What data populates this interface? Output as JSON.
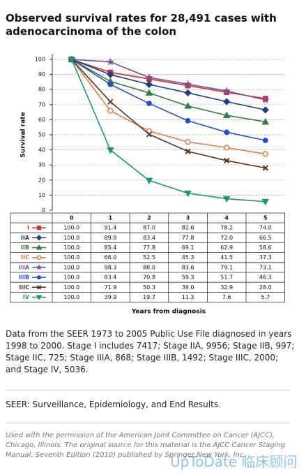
{
  "chart_data": {
    "type": "line",
    "title": "Observed survival rates for 28,491 cases with adenocarcinoma of the colon",
    "ylabel": "Survival rate",
    "xlabel": "Years from diagnosis",
    "x": [
      0,
      1,
      2,
      3,
      4,
      5
    ],
    "xlim": [
      -0.5,
      5.5
    ],
    "ylim": [
      0,
      100
    ],
    "yticks": [
      0,
      10,
      20,
      30,
      40,
      50,
      60,
      70,
      80,
      90,
      100
    ],
    "grid": true,
    "series": [
      {
        "name": "I",
        "color": "#d42a2a",
        "marker": "square",
        "values": [
          100,
          91.4,
          87,
          82.6,
          78.2,
          74
        ],
        "value_labels": [
          "100.0",
          "91.4",
          "87.0",
          "82.6",
          "78.2",
          "74.0"
        ]
      },
      {
        "name": "IIA",
        "color": "#1f3c88",
        "marker": "diamond",
        "values": [
          100,
          89.9,
          83.4,
          77.8,
          72,
          66.5
        ],
        "value_labels": [
          "100.0",
          "89.9",
          "83.4",
          "77.8",
          "72.0",
          "66.5"
        ]
      },
      {
        "name": "IIB",
        "color": "#2e7d3a",
        "marker": "triangle",
        "values": [
          100,
          85.4,
          77.8,
          69.1,
          62.9,
          58.6
        ],
        "value_labels": [
          "100.0",
          "85.4",
          "77.8",
          "69.1",
          "62.9",
          "58.6"
        ]
      },
      {
        "name": "IIC",
        "color": "#e07b39",
        "marker": "circle",
        "values": [
          100,
          66,
          52.5,
          45.3,
          41.5,
          37.3
        ],
        "value_labels": [
          "100.0",
          "66.0",
          "52.5",
          "45.3",
          "41.5",
          "37.3"
        ]
      },
      {
        "name": "IIIA",
        "color": "#7b4f9d",
        "marker": "star",
        "values": [
          100,
          98.3,
          88,
          83.6,
          79.1,
          73.1
        ],
        "value_labels": [
          "100.0",
          "98.3",
          "88.0",
          "83.6",
          "79.1",
          "73.1"
        ]
      },
      {
        "name": "IIIB",
        "color": "#1f4fd6",
        "marker": "dot",
        "values": [
          100,
          83.4,
          70.8,
          59.3,
          51.7,
          46.3
        ],
        "value_labels": [
          "100.0",
          "83.4",
          "70.8",
          "59.3",
          "51.7",
          "46.3"
        ]
      },
      {
        "name": "IIIC",
        "color": "#5c3317",
        "marker": "cross",
        "values": [
          100,
          71.9,
          50.3,
          39,
          32.9,
          28
        ],
        "value_labels": [
          "100.0",
          "71.9",
          "50.3",
          "39.0",
          "32.9",
          "28.0"
        ]
      },
      {
        "name": "IV",
        "color": "#1a9a6a",
        "marker": "triangle-down",
        "values": [
          100,
          39.9,
          19.7,
          11.3,
          7.6,
          5.7
        ],
        "value_labels": [
          "100.0",
          "39.9",
          "19.7",
          "11.3",
          "7.6",
          "5.7"
        ]
      }
    ]
  },
  "notes": {
    "paragraph": "Data from the SEER 1973 to 2005 Public Use File diagnosed in years 1998 to 2000. Stage I includes 7417; Stage IIA, 9956; Stage IIB, 997; Stage IIC, 725; Stage IIIA, 868; Stage IIIB, 1492; Stage IIIC, 2000; and Stage IV, 5036.",
    "definition": "SEER: Surveillance, Epidemiology, and End Results.",
    "credit": "Used with the permission of the American Joint Committee on Cancer (AJCC), Chicago, Illinois. The original source for this material is the AJCC Cancer Staging Manual, Seventh Edition (2010) published by Springer New York, Inc."
  },
  "watermark": "UpToDate 临床顾问"
}
